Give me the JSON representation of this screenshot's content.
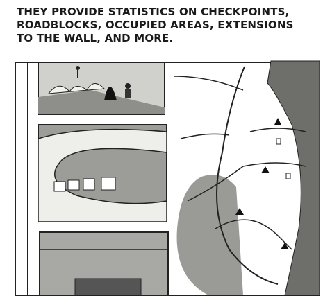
{
  "caption": {
    "lines": [
      "THEY PROVIDE STATISTICS ON CHECKPOINTS,",
      "ROADBLOCKS, OCCUPIED AREAS, EXTENSIONS",
      "TO THE WALL, AND MORE."
    ]
  }
}
